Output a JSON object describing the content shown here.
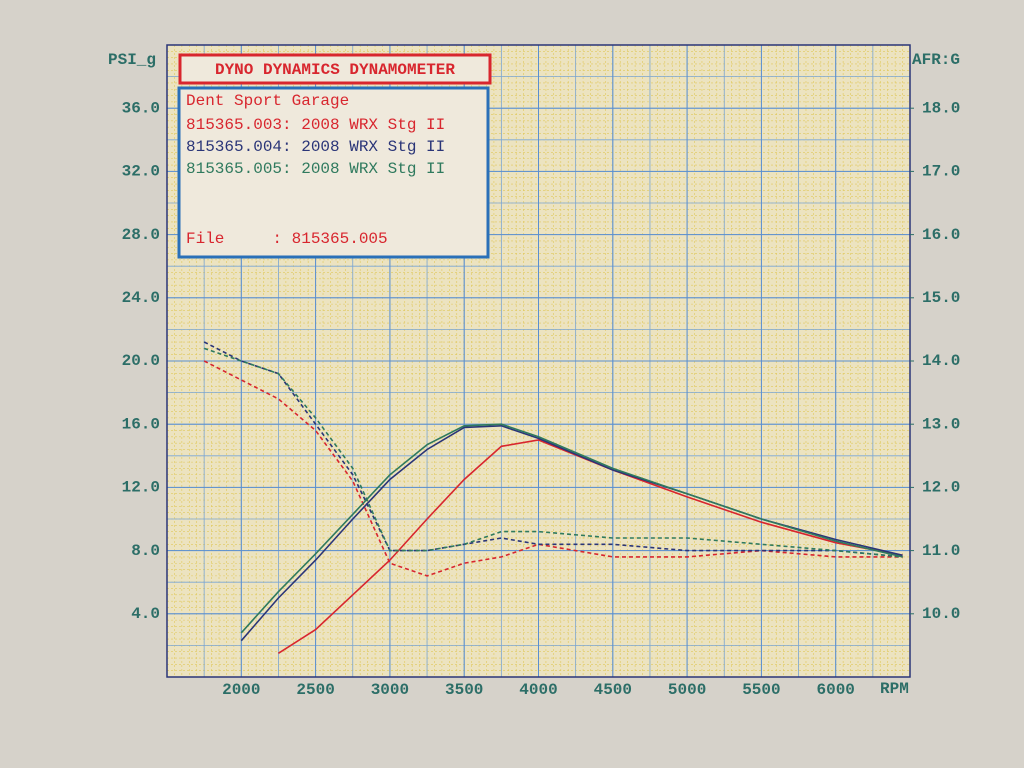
{
  "chart_data": {
    "type": "line",
    "title": "DYNO DYNAMICS DYNAMOMETER",
    "subtitle": "Dent Sport Garage",
    "file_line": "File     : 815365.005",
    "y_label": "PSI_g",
    "y2_label": "AFR:G",
    "x_label": "RPM",
    "grid": true,
    "x": [
      1750,
      2000,
      2250,
      2500,
      2750,
      3000,
      3250,
      3500,
      3750,
      4000,
      4500,
      5000,
      5500,
      6000,
      6450
    ],
    "xlim": [
      1500,
      6500
    ],
    "xticks": [
      2000,
      2500,
      3000,
      3500,
      4000,
      4500,
      5000,
      5500,
      6000
    ],
    "ylim": [
      0,
      40
    ],
    "yticks": [
      {
        "value": 4,
        "label": "4.0"
      },
      {
        "value": 8,
        "label": "8.0"
      },
      {
        "value": 12,
        "label": "12.0"
      },
      {
        "value": 16,
        "label": "16.0"
      },
      {
        "value": 20,
        "label": "20.0"
      },
      {
        "value": 24,
        "label": "24.0"
      },
      {
        "value": 28,
        "label": "28.0"
      },
      {
        "value": 32,
        "label": "32.0"
      },
      {
        "value": 36,
        "label": "36.0"
      }
    ],
    "y2lim": [
      9,
      19
    ],
    "y2ticks": [
      {
        "value": 10,
        "label": "10.0"
      },
      {
        "value": 11,
        "label": "11.0"
      },
      {
        "value": 12,
        "label": "12.0"
      },
      {
        "value": 13,
        "label": "13.0"
      },
      {
        "value": 14,
        "label": "14.0"
      },
      {
        "value": 15,
        "label": "15.0"
      },
      {
        "value": 16,
        "label": "16.0"
      },
      {
        "value": 17,
        "label": "17.0"
      },
      {
        "value": 18,
        "label": "18.0"
      }
    ],
    "series": [
      {
        "name": "815365.003: 2008 WRX Stg II",
        "color": "#d8262e",
        "values": [
          null,
          null,
          1.5,
          3.0,
          5.2,
          7.4,
          10.0,
          12.5,
          14.6,
          15.0,
          13.1,
          11.4,
          9.8,
          8.5,
          7.7
        ],
        "afr": [
          14.0,
          13.7,
          13.4,
          12.9,
          12.1,
          10.8,
          10.6,
          10.8,
          10.9,
          11.1,
          10.9,
          10.9,
          11.0,
          10.9,
          10.9
        ]
      },
      {
        "name": "815365.004: 2008 WRX Stg II",
        "color": "#2a3578",
        "values": [
          null,
          2.3,
          5.0,
          7.4,
          10.0,
          12.5,
          14.4,
          15.8,
          15.9,
          15.1,
          13.1,
          11.6,
          10.0,
          8.7,
          7.7
        ],
        "afr": [
          14.3,
          14.0,
          13.8,
          13.0,
          12.2,
          11.0,
          11.0,
          11.1,
          11.2,
          11.1,
          11.1,
          11.0,
          11.0,
          11.0,
          10.9
        ]
      },
      {
        "name": "815365.005: 2008 WRX Stg II",
        "color": "#2f7a5e",
        "values": [
          null,
          2.8,
          5.4,
          7.8,
          10.3,
          12.8,
          14.7,
          15.9,
          16.0,
          15.2,
          13.2,
          11.6,
          10.0,
          8.6,
          7.6
        ],
        "afr": [
          14.2,
          14.0,
          13.8,
          13.1,
          12.3,
          11.0,
          11.0,
          11.1,
          11.3,
          11.3,
          11.2,
          11.2,
          11.1,
          11.0,
          10.9
        ]
      }
    ]
  }
}
